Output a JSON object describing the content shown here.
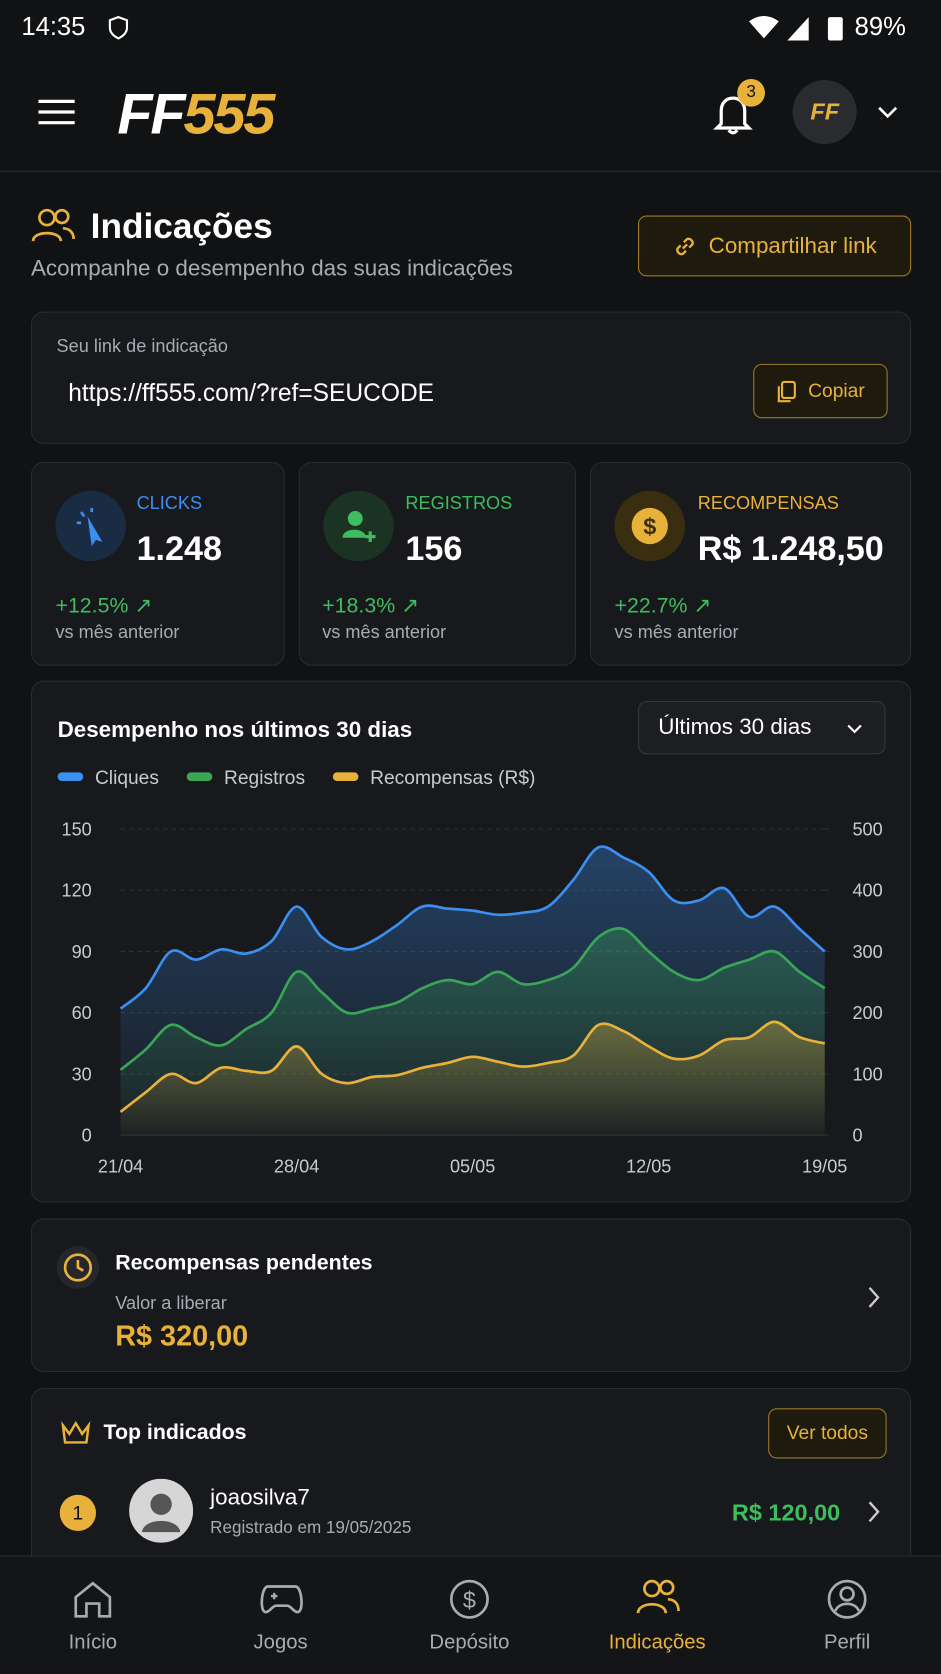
{
  "status": {
    "time": "14:35",
    "battery": "89%"
  },
  "header": {
    "logo_left": "FF",
    "logo_right": "555",
    "notifications": "3",
    "avatar": "FF"
  },
  "page": {
    "title": "Indicações",
    "subtitle": "Acompanhe o desempenho das suas indicações",
    "share_button": "Compartilhar link"
  },
  "link_card": {
    "label": "Seu link de indicação",
    "url": "https://ff555.com/?ref=SEUCODE",
    "copy_button": "Copiar"
  },
  "stats": [
    {
      "label": "CLICKS",
      "value": "1.248",
      "change": "+12.5%",
      "note": "vs mês anterior"
    },
    {
      "label": "REGISTROS",
      "value": "156",
      "change": "+18.3%",
      "note": "vs mês anterior"
    },
    {
      "label": "RECOMPENSAS",
      "value": "R$ 1.248,50",
      "change": "+22.7%",
      "note": "vs mês anterior"
    }
  ],
  "period_select": "Últimos 30 dias",
  "chart_data": {
    "type": "line",
    "title": "Desempenho nos últimos 30 dias",
    "categories": [
      "21/04",
      null,
      null,
      null,
      null,
      null,
      null,
      "28/04",
      null,
      null,
      null,
      null,
      null,
      null,
      "05/05",
      null,
      null,
      null,
      null,
      null,
      null,
      "12/05",
      null,
      null,
      null,
      null,
      null,
      null,
      "19/05"
    ],
    "series": [
      {
        "name": "Cliques",
        "color": "#3b8ff0",
        "values": [
          62,
          72,
          90,
          86,
          91,
          89,
          95,
          112,
          97,
          91,
          95,
          103,
          112,
          111,
          110,
          108,
          109,
          112,
          125,
          141,
          136,
          129,
          115,
          115,
          121,
          107,
          112,
          101,
          90
        ]
      },
      {
        "name": "Registros",
        "color": "#3aa655",
        "values": [
          32,
          42,
          54,
          48,
          44,
          52,
          60,
          80,
          70,
          60,
          62,
          65,
          72,
          76,
          74,
          80,
          74,
          76,
          82,
          97,
          101,
          90,
          80,
          76,
          82,
          86,
          90,
          80,
          72
        ]
      },
      {
        "name": "Recompensas (R$)",
        "color": "#e8b23a",
        "axis": "y2",
        "values": [
          38,
          70,
          100,
          85,
          110,
          105,
          105,
          145,
          100,
          85,
          95,
          98,
          110,
          118,
          128,
          120,
          112,
          118,
          130,
          180,
          170,
          145,
          125,
          130,
          155,
          160,
          185,
          160,
          150
        ]
      }
    ],
    "ylim": [
      0,
      150
    ],
    "yticks": [
      0,
      30,
      60,
      90,
      120,
      150
    ],
    "y2lim": [
      0,
      500
    ],
    "y2ticks": [
      0,
      100,
      200,
      300,
      400,
      500
    ],
    "grid": true
  },
  "pending": {
    "title": "Recompensas pendentes",
    "label": "Valor a liberar",
    "amount": "R$ 320,00"
  },
  "top": {
    "title": "Top indicados",
    "view_all": "Ver todos",
    "items": [
      {
        "rank": "1",
        "name": "joaosilva7",
        "registered": "Registrado em 19/05/2025",
        "amount": "R$ 120,00"
      }
    ]
  },
  "nav": [
    "Início",
    "Jogos",
    "Depósito",
    "Indicações",
    "Perfil"
  ]
}
